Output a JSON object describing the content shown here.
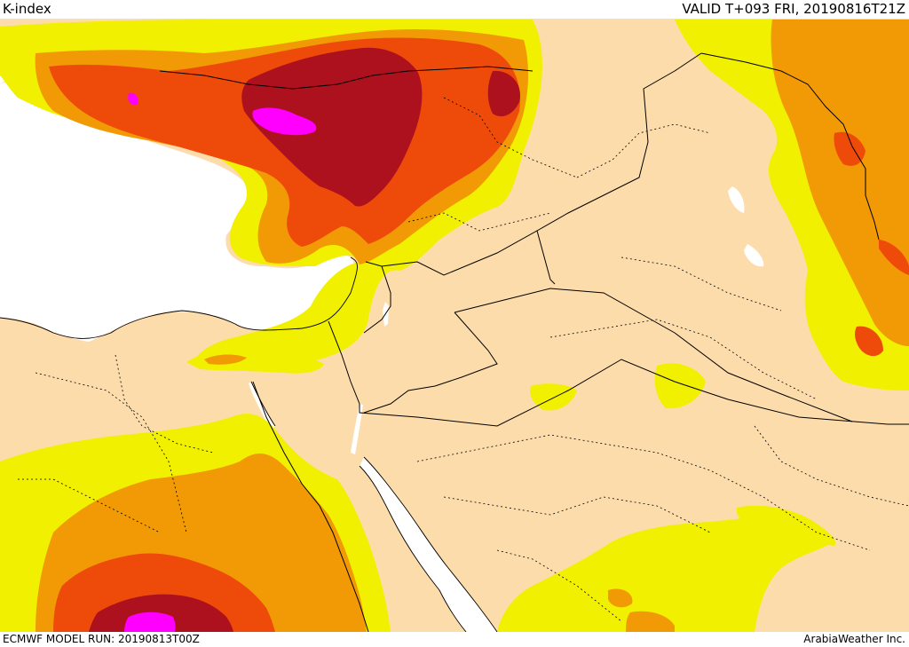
{
  "header": {
    "title": "K-index",
    "valid": "VALID T+093 FRI, 20190816T21Z"
  },
  "footer": {
    "model_run": "ECMWF MODEL RUN: 20190813T00Z",
    "credit": "ArabiaWeather Inc."
  },
  "palette": {
    "land": "#fddcac",
    "sea": "#ffffff",
    "k_level_1": "#f0f000",
    "k_level_2": "#f19a05",
    "k_level_3": "#ee4b0a",
    "k_level_4": "#ad111e",
    "k_level_5": "#ff00ff",
    "border": "#000000"
  }
}
